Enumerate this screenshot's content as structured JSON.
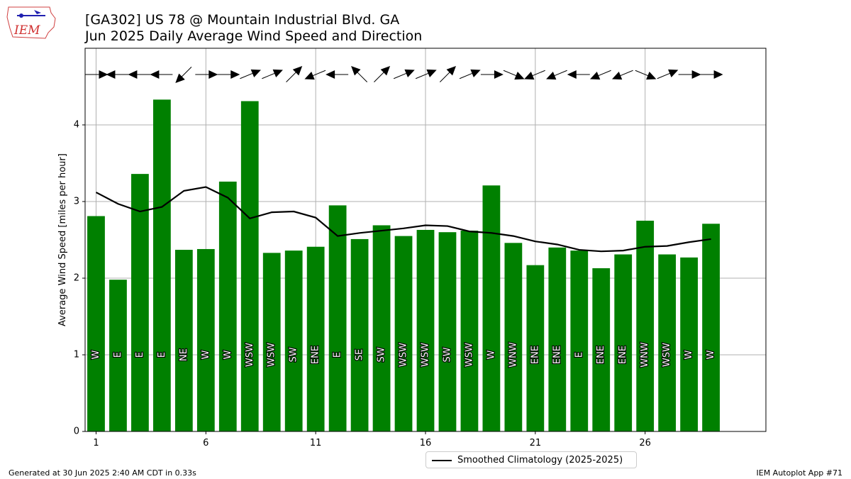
{
  "title": "[GA302] US 78 @ Mountain Industrial Blvd.  GA",
  "subtitle": "Jun 2025 Daily Average Wind Speed and Direction",
  "logo_text": "IEM",
  "footer_left": "Generated at 30 Jun 2025 2:40 AM CDT in 0.33s",
  "footer_right": "IEM Autoplot App #71",
  "chart_data": {
    "type": "bar",
    "xlabel": "",
    "ylabel": "Average Wind Speed [miles per hour]",
    "xlim": [
      0.5,
      31.5
    ],
    "ylim": [
      0,
      5
    ],
    "yticks": [
      0,
      1,
      2,
      3,
      4
    ],
    "xticks": [
      1,
      6,
      11,
      16,
      21,
      26
    ],
    "grid": true,
    "days": [
      1,
      2,
      3,
      4,
      5,
      6,
      7,
      8,
      9,
      10,
      11,
      12,
      13,
      14,
      15,
      16,
      17,
      18,
      19,
      20,
      21,
      22,
      23,
      24,
      25,
      26,
      27,
      28,
      29
    ],
    "speeds": [
      2.81,
      1.98,
      3.36,
      4.33,
      2.37,
      2.38,
      3.26,
      4.31,
      2.33,
      2.36,
      2.41,
      2.95,
      2.51,
      2.69,
      2.55,
      2.63,
      2.6,
      2.62,
      3.21,
      2.46,
      2.17,
      2.4,
      2.36,
      2.13,
      2.31,
      2.75,
      2.31,
      2.27,
      2.71
    ],
    "directions": [
      "W",
      "E",
      "E",
      "E",
      "NE",
      "W",
      "W",
      "WSW",
      "WSW",
      "SW",
      "ENE",
      "E",
      "SE",
      "SW",
      "WSW",
      "WSW",
      "SW",
      "WSW",
      "W",
      "WNW",
      "ENE",
      "ENE",
      "E",
      "ENE",
      "ENE",
      "WNW",
      "WSW",
      "W",
      "W"
    ],
    "bar_color": "#008000",
    "climatology": {
      "name": "Smoothed Climatology (2025-2025)",
      "color": "#000000",
      "values": [
        3.12,
        2.97,
        2.87,
        2.93,
        3.14,
        3.19,
        3.05,
        2.78,
        2.86,
        2.87,
        2.79,
        2.55,
        2.59,
        2.62,
        2.65,
        2.69,
        2.68,
        2.61,
        2.59,
        2.55,
        2.48,
        2.44,
        2.37,
        2.35,
        2.36,
        2.41,
        2.42,
        2.47,
        2.51
      ]
    },
    "legend_position": "below"
  }
}
